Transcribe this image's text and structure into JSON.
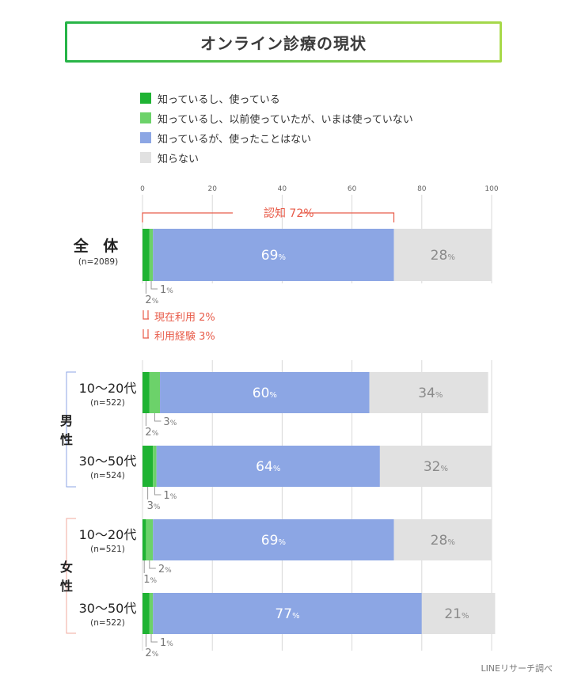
{
  "title": "オンライン診療の現状",
  "legend": [
    {
      "label": "知っているし、使っている",
      "color": "#1fb333"
    },
    {
      "label": "知っているし、以前使っていたが、いまは使っていない",
      "color": "#6cd26a"
    },
    {
      "label": "知っているが、使ったことはない",
      "color": "#8ca6e4"
    },
    {
      "label": "知らない",
      "color": "#e1e1e1"
    }
  ],
  "annotations": {
    "awareness": "認知 72%",
    "current_use": "現在利用 2%",
    "usage_experience": "利用経験 3%"
  },
  "groups": {
    "male": "男性",
    "female": "女性"
  },
  "credit": "LINEリサーチ調べ",
  "rows": [
    {
      "label": "全 体",
      "n": "(n=2089)",
      "big": true
    },
    {
      "label": "10〜20代",
      "n": "(n=522)"
    },
    {
      "label": "30〜50代",
      "n": "(n=524)"
    },
    {
      "label": "10〜20代",
      "n": "(n=521)"
    },
    {
      "label": "30〜50代",
      "n": "(n=522)"
    }
  ],
  "chart_data": {
    "type": "bar",
    "orientation": "horizontal",
    "stacked": true,
    "title": "オンライン診療の現状",
    "xlim": [
      0,
      100
    ],
    "xticks": [
      0,
      20,
      40,
      60,
      80,
      100
    ],
    "grid": true,
    "categories": [
      "全体 (n=2089)",
      "男性 10〜20代 (n=522)",
      "男性 30〜50代 (n=524)",
      "女性 10〜20代 (n=521)",
      "女性 30〜50代 (n=522)"
    ],
    "series": [
      {
        "name": "知っているし、使っている",
        "values": [
          2,
          2,
          3,
          1,
          2
        ]
      },
      {
        "name": "知っているし、以前使っていたが、いまは使っていない",
        "values": [
          1,
          3,
          1,
          2,
          1
        ]
      },
      {
        "name": "知っているが、使ったことはない",
        "values": [
          69,
          60,
          64,
          69,
          77
        ]
      },
      {
        "name": "知らない",
        "values": [
          28,
          34,
          32,
          28,
          21
        ]
      }
    ],
    "value_unit": "%"
  }
}
